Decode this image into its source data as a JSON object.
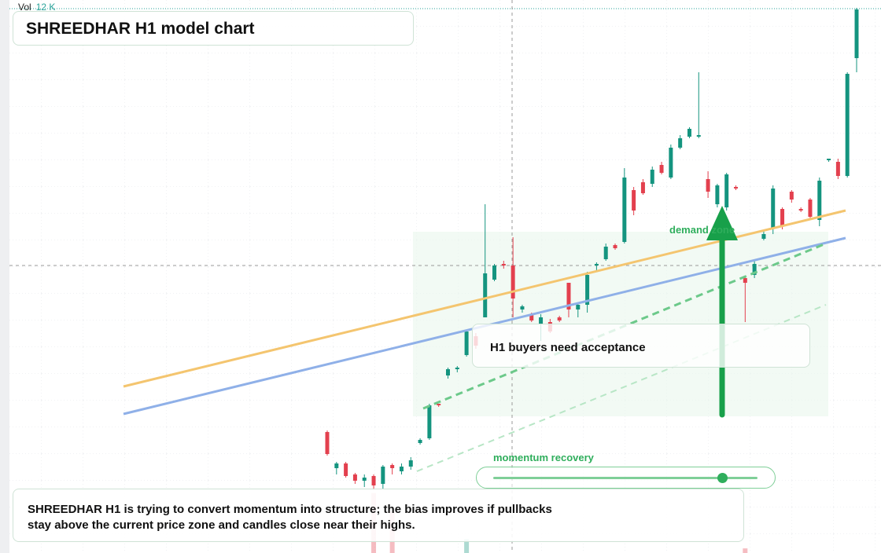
{
  "chart_data": {
    "type": "candlestick",
    "title": "SHREEDHAR H1 model chart",
    "volume_title": "Vol",
    "volume_label": "12 K",
    "zone_label": "demand zone",
    "callout": "H1 buyers need acceptance",
    "slider_label": "momentum recovery",
    "description": [
      "SHREEDHAR H1 is trying to convert momentum into structure; the bias improves if pullbacks",
      "stay above the current price zone and candles close near their highs."
    ],
    "up_color": "#14947f",
    "down_color": "#e3404e",
    "ylim": [
      0,
      704
    ],
    "y2lim": [
      0,
      12000
    ],
    "open": [
      154,
      108,
      114,
      100,
      92,
      98,
      88,
      112,
      104,
      110,
      140,
      146,
      190,
      226,
      234,
      252,
      276,
      300,
      348,
      368,
      366,
      310,
      304,
      292,
      294,
      300,
      344,
      310,
      316,
      366,
      374,
      392,
      396,
      462,
      472,
      470,
      494,
      478,
      516,
      530,
      530,
      476,
      444,
      440,
      466,
      350,
      354,
      400,
      414,
      438,
      460,
      438,
      450,
      424,
      500,
      498,
      480,
      630
    ],
    "high": [
      156,
      116,
      116,
      102,
      100,
      100,
      112,
      114,
      114,
      122,
      146,
      190,
      190,
      236,
      238,
      284,
      280,
      444,
      368,
      372,
      402,
      316,
      306,
      304,
      298,
      302,
      344,
      318,
      358,
      370,
      394,
      394,
      490,
      466,
      476,
      492,
      498,
      520,
      532,
      542,
      612,
      486,
      470,
      484,
      468,
      352,
      372,
      412,
      468,
      440,
      462,
      440,
      452,
      478,
      502,
      502,
      612,
      694
    ],
    "low": [
      124,
      100,
      96,
      88,
      84,
      80,
      82,
      100,
      100,
      106,
      138,
      144,
      186,
      222,
      230,
      250,
      260,
      300,
      346,
      362,
      300,
      306,
      294,
      270,
      280,
      294,
      300,
      300,
      306,
      360,
      372,
      386,
      394,
      430,
      456,
      466,
      482,
      476,
      514,
      528,
      528,
      452,
      440,
      436,
      462,
      294,
      350,
      398,
      406,
      412,
      446,
      434,
      424,
      416,
      498,
      476,
      478,
      612
    ],
    "close": [
      126,
      114,
      98,
      92,
      96,
      86,
      110,
      108,
      110,
      118,
      144,
      188,
      188,
      234,
      236,
      282,
      264,
      356,
      366,
      366,
      324,
      314,
      296,
      300,
      282,
      296,
      310,
      316,
      354,
      368,
      390,
      388,
      478,
      436,
      458,
      488,
      484,
      516,
      528,
      540,
      532,
      460,
      468,
      482,
      464,
      344,
      368,
      406,
      464,
      416,
      450,
      436,
      428,
      474,
      502,
      480,
      610,
      692
    ],
    "volume": [
      null,
      null,
      null,
      null,
      null,
      1300,
      null,
      900,
      null,
      null,
      null,
      null,
      null,
      null,
      null,
      300,
      null,
      null,
      null,
      null,
      null,
      null,
      null,
      null,
      null,
      null,
      null,
      null,
      null,
      null,
      null,
      null,
      null,
      null,
      null,
      null,
      null,
      null,
      null,
      null,
      null,
      null,
      null,
      null,
      null,
      100,
      null,
      null,
      null,
      null,
      null,
      null,
      null,
      null,
      null,
      null,
      null,
      null
    ]
  }
}
